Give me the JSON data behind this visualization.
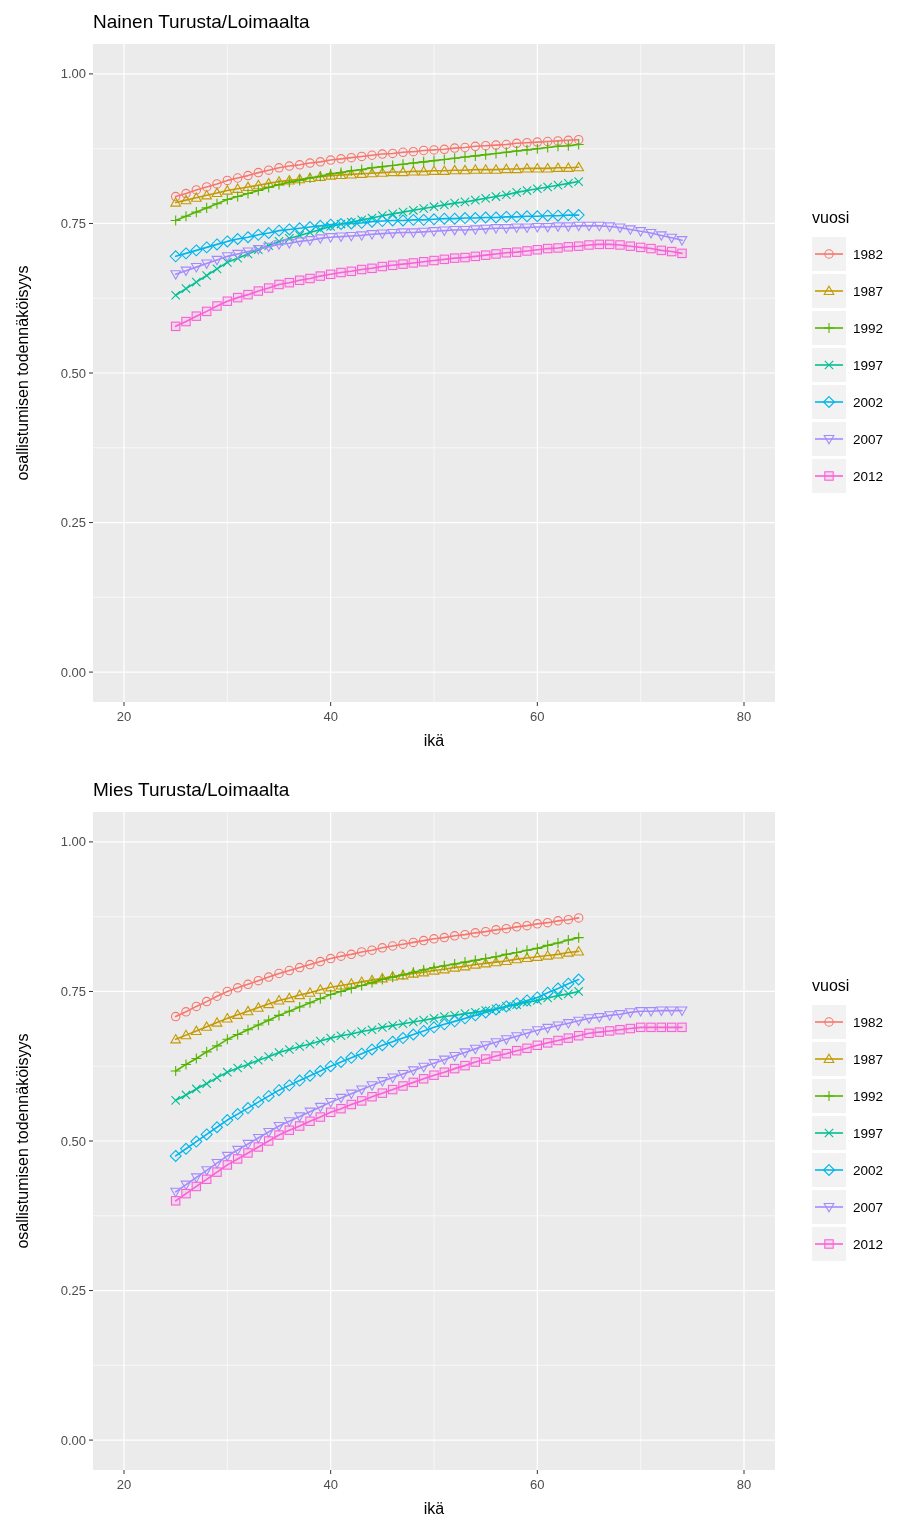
{
  "chart_data": [
    {
      "type": "line",
      "title": "Nainen Turusta/Loimaalta",
      "xlabel": "ikä",
      "ylabel": "osallistumisen todennäköisyys",
      "legend_title": "vuosi",
      "legend": "right",
      "grid": true,
      "line_style": "solid",
      "xlim": [
        17,
        83
      ],
      "xticks": [
        20,
        40,
        60,
        80
      ],
      "ylim": [
        -0.05,
        1.05
      ],
      "yticks": [
        {
          "value": 0,
          "label": "0.00"
        },
        {
          "value": 0.25,
          "label": "0.25"
        },
        {
          "value": 0.5,
          "label": "0.50"
        },
        {
          "value": 0.75,
          "label": "0.75"
        },
        {
          "value": 1,
          "label": "1.00"
        }
      ],
      "x": [
        25,
        26,
        27,
        28,
        29,
        30,
        31,
        32,
        33,
        34,
        35,
        36,
        37,
        38,
        39,
        40,
        41,
        42,
        43,
        44,
        45,
        46,
        47,
        48,
        49,
        50,
        51,
        52,
        53,
        54,
        55,
        56,
        57,
        58,
        59,
        60,
        61,
        62,
        63,
        64,
        65,
        66,
        67,
        68,
        69,
        70,
        71,
        72,
        73,
        74
      ],
      "series": [
        {
          "name": "1982",
          "color": "#F8766D",
          "marker": "circle",
          "values": [
            0.795,
            0.8,
            0.806,
            0.811,
            0.816,
            0.822,
            0.826,
            0.83,
            0.835,
            0.839,
            0.843,
            0.846,
            0.848,
            0.851,
            0.853,
            0.856,
            0.858,
            0.86,
            0.862,
            0.864,
            0.866,
            0.867,
            0.869,
            0.87,
            0.872,
            0.873,
            0.874,
            0.876,
            0.877,
            0.879,
            0.88,
            0.881,
            0.882,
            0.884,
            0.885,
            0.886,
            0.887,
            0.888,
            0.889,
            0.89,
            null,
            null,
            null,
            null,
            null,
            null,
            null,
            null,
            null,
            null
          ]
        },
        {
          "name": "1987",
          "color": "#C49A00",
          "marker": "triangle",
          "values": [
            0.785,
            0.789,
            0.793,
            0.797,
            0.801,
            0.805,
            0.808,
            0.811,
            0.814,
            0.817,
            0.82,
            0.822,
            0.824,
            0.826,
            0.828,
            0.83,
            0.831,
            0.832,
            0.833,
            0.834,
            0.835,
            0.836,
            0.836,
            0.837,
            0.837,
            0.838,
            0.838,
            0.839,
            0.839,
            0.84,
            0.84,
            0.84,
            0.841,
            0.841,
            0.842,
            0.842,
            0.842,
            0.843,
            0.843,
            0.844,
            null,
            null,
            null,
            null,
            null,
            null,
            null,
            null,
            null,
            null
          ]
        },
        {
          "name": "1992",
          "color": "#53B400",
          "marker": "plus",
          "values": [
            0.755,
            0.762,
            0.769,
            0.776,
            0.783,
            0.79,
            0.795,
            0.8,
            0.805,
            0.81,
            0.815,
            0.819,
            0.822,
            0.826,
            0.829,
            0.833,
            0.835,
            0.838,
            0.84,
            0.843,
            0.845,
            0.847,
            0.849,
            0.851,
            0.853,
            0.855,
            0.857,
            0.859,
            0.861,
            0.863,
            0.865,
            0.867,
            0.869,
            0.871,
            0.873,
            0.875,
            0.877,
            0.879,
            0.88,
            0.882,
            null,
            null,
            null,
            null,
            null,
            null,
            null,
            null,
            null,
            null
          ]
        },
        {
          "name": "1997",
          "color": "#00C094",
          "marker": "cross",
          "values": [
            0.63,
            0.641,
            0.652,
            0.663,
            0.674,
            0.685,
            0.692,
            0.699,
            0.706,
            0.713,
            0.72,
            0.725,
            0.73,
            0.735,
            0.74,
            0.745,
            0.749,
            0.752,
            0.756,
            0.759,
            0.763,
            0.766,
            0.769,
            0.772,
            0.775,
            0.778,
            0.781,
            0.784,
            0.786,
            0.789,
            0.792,
            0.795,
            0.798,
            0.802,
            0.805,
            0.808,
            0.811,
            0.814,
            0.817,
            0.82,
            null,
            null,
            null,
            null,
            null,
            null,
            null,
            null,
            null,
            null
          ]
        },
        {
          "name": "2002",
          "color": "#00B6EB",
          "marker": "diamond",
          "values": [
            0.695,
            0.7,
            0.705,
            0.71,
            0.715,
            0.72,
            0.724,
            0.727,
            0.731,
            0.734,
            0.738,
            0.74,
            0.742,
            0.744,
            0.746,
            0.748,
            0.749,
            0.75,
            0.751,
            0.753,
            0.754,
            0.755,
            0.755,
            0.756,
            0.756,
            0.757,
            0.758,
            0.758,
            0.759,
            0.759,
            0.76,
            0.76,
            0.761,
            0.761,
            0.762,
            0.762,
            0.763,
            0.763,
            0.764,
            0.764,
            null,
            null,
            null,
            null,
            null,
            null,
            null,
            null,
            null,
            null
          ]
        },
        {
          "name": "2007",
          "color": "#A58AFF",
          "marker": "triangle-down",
          "values": [
            0.665,
            0.671,
            0.677,
            0.683,
            0.689,
            0.695,
            0.699,
            0.703,
            0.707,
            0.711,
            0.715,
            0.717,
            0.72,
            0.722,
            0.725,
            0.727,
            0.728,
            0.729,
            0.73,
            0.732,
            0.733,
            0.734,
            0.735,
            0.735,
            0.736,
            0.737,
            0.738,
            0.739,
            0.739,
            0.74,
            0.741,
            0.742,
            0.742,
            0.743,
            0.743,
            0.744,
            0.744,
            0.745,
            0.745,
            0.746,
            0.746,
            0.746,
            0.745,
            0.743,
            0.74,
            0.737,
            0.734,
            0.73,
            0.726,
            0.722
          ]
        },
        {
          "name": "2012",
          "color": "#FB61D7",
          "marker": "square",
          "values": [
            0.578,
            0.586,
            0.595,
            0.603,
            0.612,
            0.62,
            0.626,
            0.631,
            0.637,
            0.642,
            0.648,
            0.651,
            0.655,
            0.658,
            0.662,
            0.665,
            0.668,
            0.67,
            0.673,
            0.675,
            0.678,
            0.68,
            0.682,
            0.684,
            0.686,
            0.688,
            0.69,
            0.692,
            0.693,
            0.695,
            0.697,
            0.699,
            0.701,
            0.702,
            0.704,
            0.706,
            0.708,
            0.709,
            0.711,
            0.712,
            0.714,
            0.715,
            0.715,
            0.714,
            0.712,
            0.71,
            0.708,
            0.705,
            0.703,
            0.7
          ]
        }
      ]
    },
    {
      "type": "line",
      "title": "Mies Turusta/Loimaalta",
      "xlabel": "ikä",
      "ylabel": "osallistumisen todennäköisyys",
      "legend_title": "vuosi",
      "legend": "right",
      "grid": true,
      "line_style": "solid",
      "xlim": [
        17,
        83
      ],
      "xticks": [
        20,
        40,
        60,
        80
      ],
      "ylim": [
        -0.05,
        1.05
      ],
      "yticks": [
        {
          "value": 0,
          "label": "0.00"
        },
        {
          "value": 0.25,
          "label": "0.25"
        },
        {
          "value": 0.5,
          "label": "0.50"
        },
        {
          "value": 0.75,
          "label": "0.75"
        },
        {
          "value": 1,
          "label": "1.00"
        }
      ],
      "x": [
        25,
        26,
        27,
        28,
        29,
        30,
        31,
        32,
        33,
        34,
        35,
        36,
        37,
        38,
        39,
        40,
        41,
        42,
        43,
        44,
        45,
        46,
        47,
        48,
        49,
        50,
        51,
        52,
        53,
        54,
        55,
        56,
        57,
        58,
        59,
        60,
        61,
        62,
        63,
        64,
        65,
        66,
        67,
        68,
        69,
        70,
        71,
        72,
        73,
        74
      ],
      "series": [
        {
          "name": "1982",
          "color": "#F8766D",
          "marker": "circle",
          "values": [
            0.708,
            0.716,
            0.725,
            0.733,
            0.742,
            0.75,
            0.756,
            0.762,
            0.768,
            0.774,
            0.78,
            0.785,
            0.79,
            0.795,
            0.8,
            0.805,
            0.809,
            0.812,
            0.816,
            0.819,
            0.823,
            0.826,
            0.829,
            0.832,
            0.835,
            0.838,
            0.84,
            0.843,
            0.845,
            0.848,
            0.85,
            0.853,
            0.855,
            0.858,
            0.86,
            0.863,
            0.865,
            0.868,
            0.87,
            0.873,
            null,
            null,
            null,
            null,
            null,
            null,
            null,
            null,
            null,
            null
          ]
        },
        {
          "name": "1987",
          "color": "#C49A00",
          "marker": "triangle",
          "values": [
            0.67,
            0.677,
            0.684,
            0.691,
            0.698,
            0.705,
            0.711,
            0.717,
            0.723,
            0.729,
            0.735,
            0.739,
            0.744,
            0.748,
            0.753,
            0.757,
            0.76,
            0.763,
            0.766,
            0.769,
            0.772,
            0.775,
            0.777,
            0.78,
            0.782,
            0.785,
            0.787,
            0.79,
            0.792,
            0.795,
            0.797,
            0.799,
            0.801,
            0.804,
            0.806,
            0.808,
            0.81,
            0.812,
            0.815,
            0.817,
            null,
            null,
            null,
            null,
            null,
            null,
            null,
            null,
            null,
            null
          ]
        },
        {
          "name": "1992",
          "color": "#53B400",
          "marker": "plus",
          "values": [
            0.617,
            0.628,
            0.638,
            0.649,
            0.659,
            0.67,
            0.678,
            0.686,
            0.694,
            0.702,
            0.71,
            0.717,
            0.724,
            0.731,
            0.738,
            0.745,
            0.75,
            0.755,
            0.76,
            0.765,
            0.77,
            0.774,
            0.778,
            0.782,
            0.786,
            0.79,
            0.793,
            0.796,
            0.799,
            0.802,
            0.805,
            0.808,
            0.812,
            0.815,
            0.819,
            0.822,
            0.827,
            0.831,
            0.836,
            0.84,
            null,
            null,
            null,
            null,
            null,
            null,
            null,
            null,
            null,
            null
          ]
        },
        {
          "name": "1997",
          "color": "#00C094",
          "marker": "cross",
          "values": [
            0.568,
            0.577,
            0.587,
            0.596,
            0.606,
            0.615,
            0.622,
            0.628,
            0.635,
            0.641,
            0.648,
            0.653,
            0.658,
            0.662,
            0.667,
            0.672,
            0.676,
            0.679,
            0.683,
            0.686,
            0.69,
            0.693,
            0.696,
            0.699,
            0.702,
            0.705,
            0.708,
            0.71,
            0.713,
            0.715,
            0.718,
            0.721,
            0.725,
            0.728,
            0.732,
            0.735,
            0.739,
            0.743,
            0.746,
            0.75,
            null,
            null,
            null,
            null,
            null,
            null,
            null,
            null,
            null,
            null
          ]
        },
        {
          "name": "2002",
          "color": "#00B6EB",
          "marker": "diamond",
          "values": [
            0.475,
            0.487,
            0.499,
            0.511,
            0.523,
            0.535,
            0.545,
            0.555,
            0.565,
            0.575,
            0.585,
            0.593,
            0.601,
            0.609,
            0.617,
            0.625,
            0.632,
            0.639,
            0.646,
            0.653,
            0.66,
            0.666,
            0.672,
            0.678,
            0.684,
            0.69,
            0.695,
            0.7,
            0.705,
            0.71,
            0.715,
            0.72,
            0.725,
            0.73,
            0.735,
            0.74,
            0.748,
            0.755,
            0.763,
            0.77,
            null,
            null,
            null,
            null,
            null,
            null,
            null,
            null,
            null,
            null
          ]
        },
        {
          "name": "2007",
          "color": "#A58AFF",
          "marker": "triangle-down",
          "values": [
            0.415,
            0.427,
            0.439,
            0.451,
            0.463,
            0.475,
            0.485,
            0.495,
            0.505,
            0.515,
            0.525,
            0.533,
            0.541,
            0.549,
            0.557,
            0.565,
            0.572,
            0.579,
            0.586,
            0.593,
            0.6,
            0.606,
            0.612,
            0.618,
            0.624,
            0.63,
            0.636,
            0.642,
            0.648,
            0.654,
            0.66,
            0.665,
            0.67,
            0.675,
            0.68,
            0.685,
            0.689,
            0.693,
            0.697,
            0.701,
            0.705,
            0.707,
            0.71,
            0.712,
            0.715,
            0.717,
            0.717,
            0.718,
            0.718,
            0.718
          ]
        },
        {
          "name": "2012",
          "color": "#FB61D7",
          "marker": "square",
          "values": [
            0.4,
            0.412,
            0.424,
            0.436,
            0.448,
            0.46,
            0.47,
            0.48,
            0.49,
            0.5,
            0.51,
            0.518,
            0.525,
            0.533,
            0.54,
            0.548,
            0.554,
            0.561,
            0.567,
            0.574,
            0.58,
            0.586,
            0.592,
            0.598,
            0.604,
            0.61,
            0.615,
            0.621,
            0.626,
            0.632,
            0.637,
            0.642,
            0.646,
            0.651,
            0.655,
            0.66,
            0.664,
            0.668,
            0.672,
            0.676,
            0.68,
            0.682,
            0.684,
            0.686,
            0.688,
            0.69,
            0.69,
            0.69,
            0.69,
            0.69
          ]
        }
      ]
    }
  ]
}
